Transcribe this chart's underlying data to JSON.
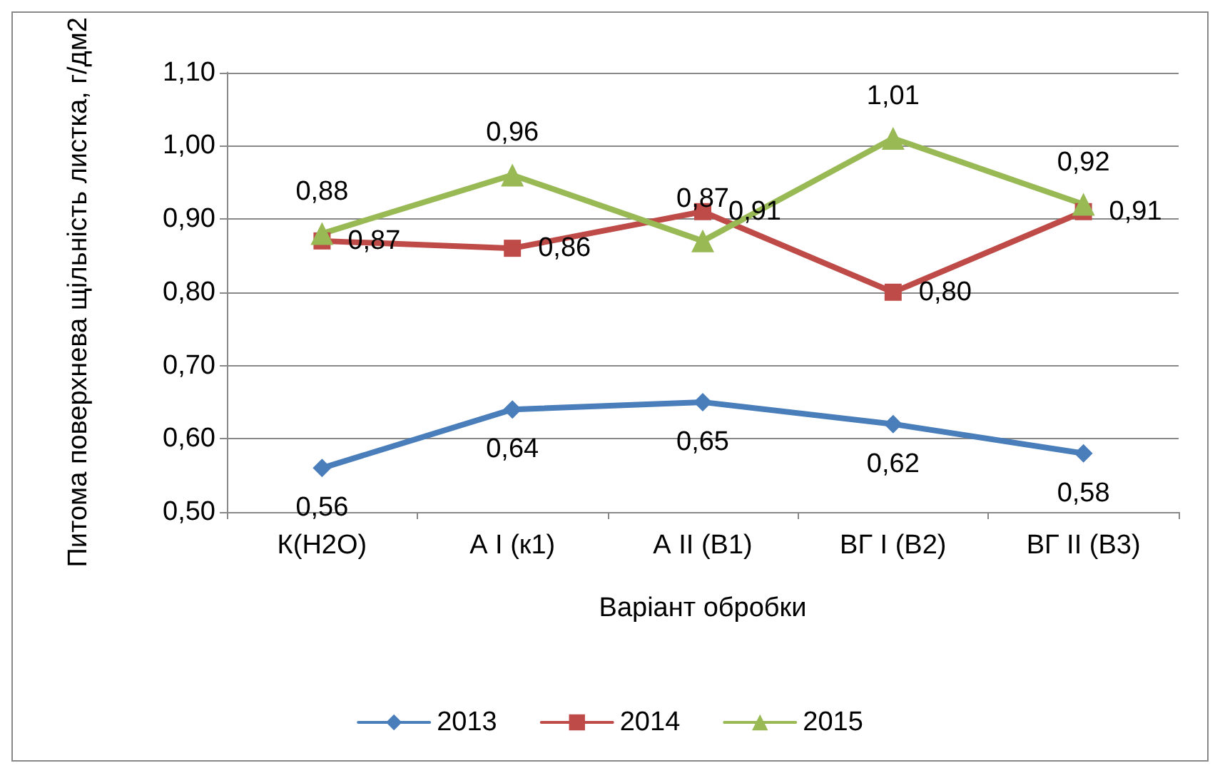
{
  "chart_data": {
    "type": "line",
    "xlabel": "Варіант обробки",
    "ylabel": "Питома поверхнева щільність листка, г/дм2",
    "categories": [
      "К(Н2О)",
      "А І (к1)",
      "А ІІ (В1)",
      "ВГ І (В2)",
      "ВГ ІІ (В3)"
    ],
    "series": [
      {
        "name": "2013",
        "color": "#4a7ebb",
        "marker": "diamond",
        "values": [
          0.56,
          0.64,
          0.65,
          0.62,
          0.58
        ],
        "value_labels": [
          "0,56",
          "0,64",
          "0,65",
          "0,62",
          "0,58"
        ]
      },
      {
        "name": "2014",
        "color": "#be4b48",
        "marker": "square",
        "values": [
          0.87,
          0.86,
          0.91,
          0.8,
          0.91
        ],
        "value_labels": [
          "0,87",
          "0,86",
          "0,91",
          "0,80",
          "0,91"
        ]
      },
      {
        "name": "2015",
        "color": "#98b954",
        "marker": "triangle",
        "values": [
          0.88,
          0.96,
          0.87,
          1.01,
          0.92
        ],
        "value_labels": [
          "0,88",
          "0,96",
          "0,87",
          "1,01",
          "0,92"
        ]
      }
    ],
    "ylim": [
      0.5,
      1.1
    ],
    "yticks": [
      {
        "value": 0.5,
        "label": "0,50"
      },
      {
        "value": 0.6,
        "label": "0,60"
      },
      {
        "value": 0.7,
        "label": "0,70"
      },
      {
        "value": 0.8,
        "label": "0,80"
      },
      {
        "value": 0.9,
        "label": "0,90"
      },
      {
        "value": 1.0,
        "label": "1,00"
      },
      {
        "value": 1.1,
        "label": "1,10"
      }
    ],
    "grid": "y",
    "legend": "bottom",
    "line_style": "solid"
  }
}
